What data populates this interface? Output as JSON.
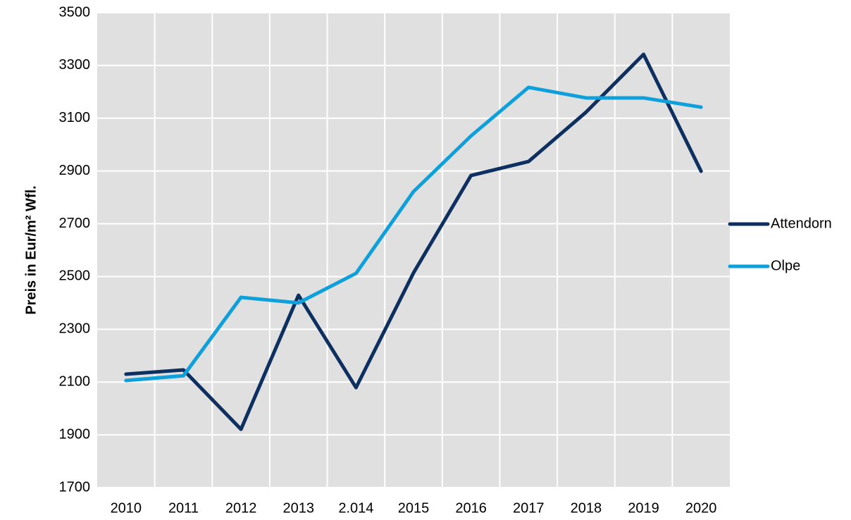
{
  "chart_data": {
    "type": "line",
    "y_label": "Preis in Eur/m² Wfl.",
    "categories": [
      "2010",
      "2011",
      "2012",
      "2013",
      "2.014",
      "2015",
      "2016",
      "2017",
      "2018",
      "2019",
      "2020"
    ],
    "series": [
      {
        "name": "Attendorn",
        "color": "#0d3060",
        "values": [
          2130,
          2146,
          1921,
          2429,
          2079,
          2514,
          2883,
          2936,
          3123,
          3342,
          2899
        ]
      },
      {
        "name": "Olpe",
        "color": "#0ea0db",
        "values": [
          2106,
          2124,
          2421,
          2400,
          2512,
          2822,
          3033,
          3217,
          3177,
          3177,
          3142
        ]
      }
    ],
    "ylim": [
      1700,
      3500
    ],
    "yticks": [
      1700,
      1900,
      2100,
      2300,
      2500,
      2700,
      2900,
      3100,
      3300,
      3500
    ],
    "grid": true,
    "legend": "right"
  }
}
